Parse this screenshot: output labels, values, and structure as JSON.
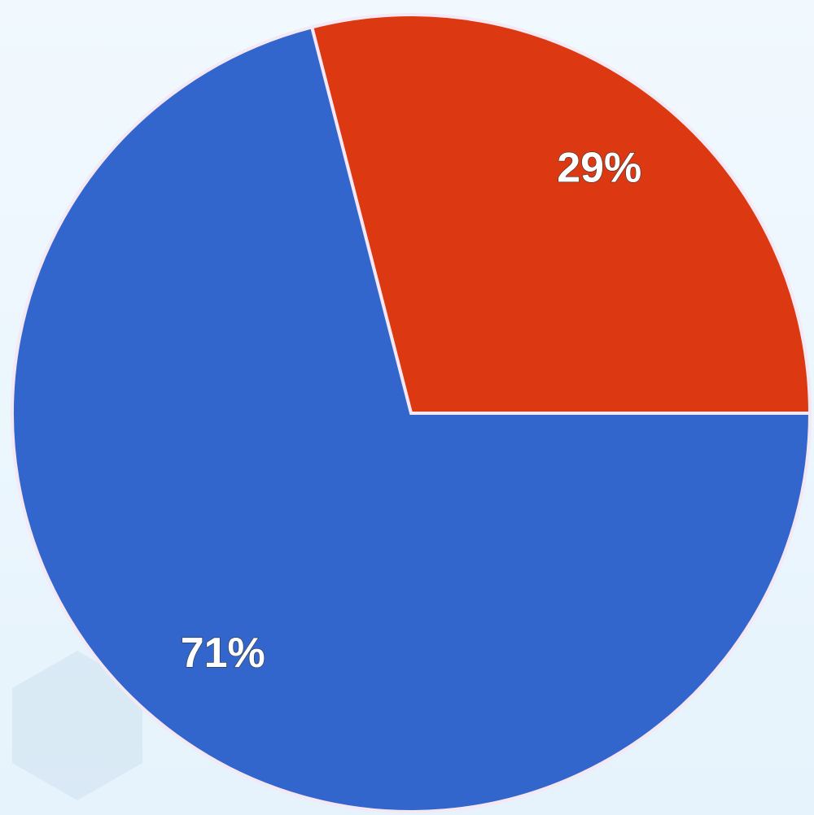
{
  "chart_data": {
    "type": "pie",
    "values": [
      29,
      71
    ],
    "value_labels": [
      "29%",
      "71%"
    ],
    "colors": [
      "#dc3912",
      "#3366cc"
    ]
  }
}
